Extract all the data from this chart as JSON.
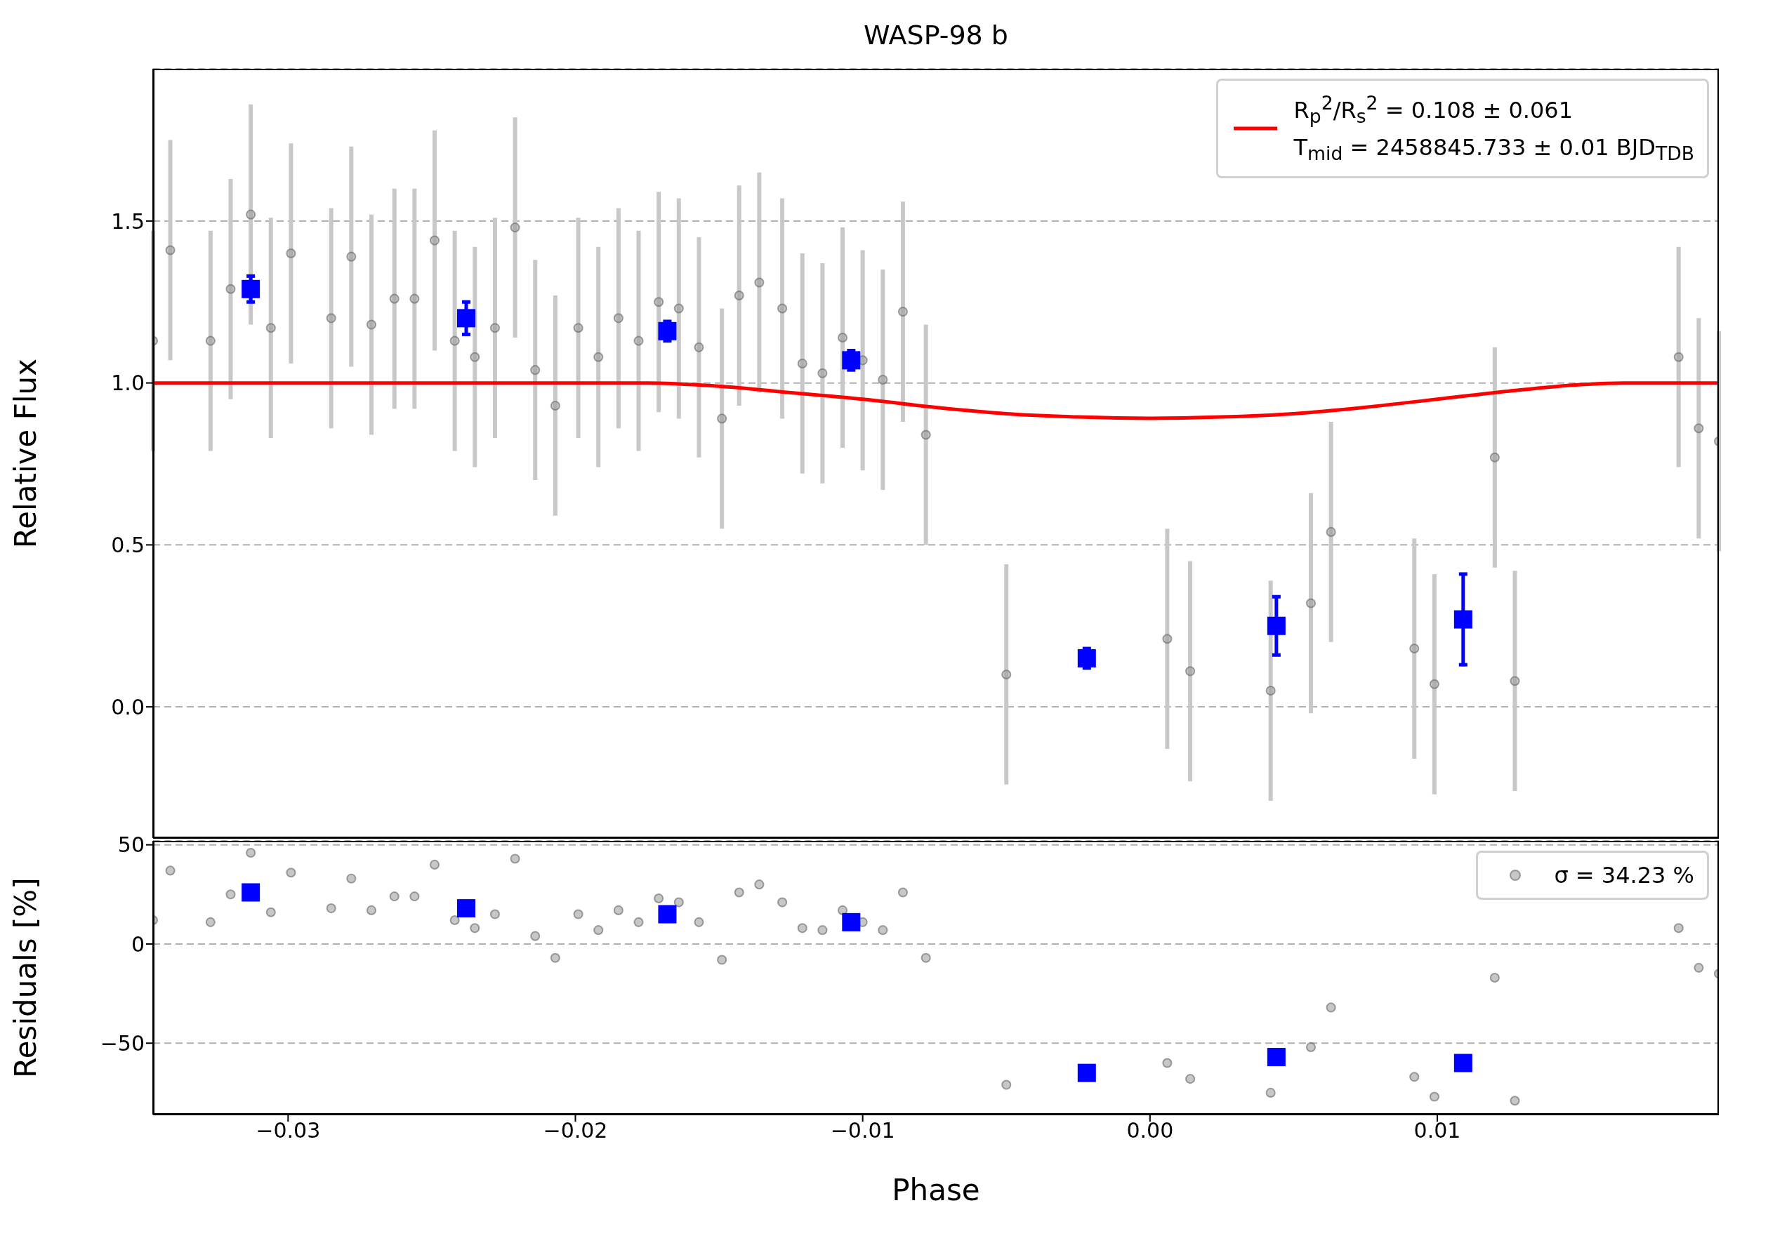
{
  "chart_data": [
    {
      "type": "scatter",
      "title": "WASP-98 b",
      "ylabel": "Relative Flux",
      "xlim": [
        -0.0347,
        0.0198
      ],
      "xticks": [
        {
          "value": -0.03,
          "label": null
        },
        {
          "value": -0.02,
          "label": null
        },
        {
          "value": -0.01,
          "label": null
        },
        {
          "value": 0,
          "label": null
        },
        {
          "value": 0.01,
          "label": null
        }
      ],
      "ylim": [
        -0.405,
        1.97
      ],
      "yticks": [
        {
          "value": 0,
          "label": "0.0"
        },
        0.5,
        {
          "value": 1,
          "label": "1.0"
        },
        1.5
      ],
      "tick_labels": "y",
      "grid": "y",
      "legend": "top right",
      "series": [
        {
          "color": "#999999",
          "marker": "circle",
          "x": [
            -0.0347,
            -0.0341,
            -0.0327,
            -0.032,
            -0.0313,
            -0.0306,
            -0.0299,
            -0.0285,
            -0.0278,
            -0.0271,
            -0.0263,
            -0.0256,
            -0.0249,
            -0.0242,
            -0.0235,
            -0.0228,
            -0.0221,
            -0.0214,
            -0.0207,
            -0.0199,
            -0.0192,
            -0.0185,
            -0.0178,
            -0.0171,
            -0.0164,
            -0.0157,
            -0.0149,
            -0.0143,
            -0.0136,
            -0.0128,
            -0.0121,
            -0.0114,
            -0.0107,
            -0.01,
            -0.0093,
            -0.0086,
            -0.0078,
            -0.005,
            0.0006,
            0.0014,
            0.0042,
            0.0056,
            0.0063,
            0.0092,
            0.0099,
            0.012,
            0.0127,
            0.0184,
            0.0191,
            0.0198
          ],
          "values": [
            1.13,
            1.41,
            1.13,
            1.29,
            1.52,
            1.17,
            1.4,
            1.2,
            1.39,
            1.18,
            1.26,
            1.26,
            1.44,
            1.13,
            1.08,
            1.17,
            1.48,
            1.04,
            0.93,
            1.17,
            1.08,
            1.2,
            1.13,
            1.25,
            1.23,
            1.11,
            0.89,
            1.27,
            1.31,
            1.23,
            1.06,
            1.03,
            1.14,
            1.07,
            1.01,
            1.22,
            0.84,
            0.1,
            0.21,
            0.11,
            0.05,
            0.32,
            0.54,
            0.18,
            0.07,
            0.77,
            0.08,
            1.08,
            0.86,
            0.82
          ],
          "errors": [
            0.34,
            0.34,
            0.34,
            0.34,
            0.34,
            0.34,
            0.34,
            0.34,
            0.34,
            0.34,
            0.34,
            0.34,
            0.34,
            0.34,
            0.34,
            0.34,
            0.34,
            0.34,
            0.34,
            0.34,
            0.34,
            0.34,
            0.34,
            0.34,
            0.34,
            0.34,
            0.34,
            0.34,
            0.34,
            0.34,
            0.34,
            0.34,
            0.34,
            0.34,
            0.34,
            0.34,
            0.34,
            0.34,
            0.34,
            0.34,
            0.34,
            0.34,
            0.34,
            0.34,
            0.34,
            0.34,
            0.34,
            0.34,
            0.34,
            0.34
          ]
        },
        {
          "color": "#0000ff",
          "marker": "square",
          "x": [
            -0.0313,
            -0.0238,
            -0.0168,
            -0.0104,
            -0.0022,
            0.0044,
            0.0109
          ],
          "values": [
            1.29,
            1.2,
            1.16,
            1.07,
            0.15,
            0.25,
            0.27
          ],
          "errors": [
            0.04,
            0.05,
            0.03,
            0.03,
            0.03,
            0.09,
            0.14
          ]
        },
        {
          "type": "line",
          "name": "R$_{p}$$^{2}$/R$_{s}$$^{2}$ = 0.108 ± 0.061\nT$_{mid}$ = 2458845.733 ± 0.01 BJD$_{TDB}$",
          "color": "#ff0000",
          "marker": "none",
          "line_style": "solid",
          "x": [
            -0.0347,
            -0.0175,
            -0.015,
            -0.0125,
            -0.01,
            -0.0075,
            -0.005,
            -0.0025,
            0,
            0.0025,
            0.005,
            0.0075,
            0.01,
            0.0125,
            0.015,
            0.0165,
            0.0198
          ],
          "values": [
            1,
            1,
            0.99,
            0.97,
            0.95,
            0.925,
            0.905,
            0.895,
            0.891,
            0.895,
            0.905,
            0.925,
            0.95,
            0.975,
            0.995,
            1,
            1
          ]
        }
      ]
    },
    {
      "type": "scatter",
      "xlabel": "Phase",
      "ylabel": "Residuals [%]",
      "xlim": [
        -0.0347,
        0.0198
      ],
      "xticks": [
        {
          "value": -0.03,
          "label": "−0.03"
        },
        {
          "value": -0.02,
          "label": "−0.02"
        },
        {
          "value": -0.01,
          "label": "−0.01"
        },
        {
          "value": 0,
          "label": "0.00"
        },
        {
          "value": 0.01,
          "label": "0.01"
        }
      ],
      "ylim": [
        -86,
        52
      ],
      "yticks": [
        {
          "value": -50,
          "label": "−50"
        },
        0,
        50
      ],
      "grid": "y",
      "legend": "top right",
      "series": [
        {
          "name": "σ = 34.23 %",
          "color": "#999999",
          "marker": "circle",
          "x": [
            -0.0347,
            -0.0341,
            -0.0327,
            -0.032,
            -0.0313,
            -0.0306,
            -0.0299,
            -0.0285,
            -0.0278,
            -0.0271,
            -0.0263,
            -0.0256,
            -0.0249,
            -0.0242,
            -0.0235,
            -0.0228,
            -0.0221,
            -0.0214,
            -0.0207,
            -0.0199,
            -0.0192,
            -0.0185,
            -0.0178,
            -0.0171,
            -0.0164,
            -0.0157,
            -0.0149,
            -0.0143,
            -0.0136,
            -0.0128,
            -0.0121,
            -0.0114,
            -0.0107,
            -0.01,
            -0.0093,
            -0.0086,
            -0.0078,
            -0.005,
            0.0006,
            0.0014,
            0.0042,
            0.0056,
            0.0063,
            0.0092,
            0.0099,
            0.012,
            0.0127,
            0.0184,
            0.0191,
            0.0198
          ],
          "values": [
            12,
            37,
            11,
            25,
            46,
            16,
            36,
            18,
            33,
            17,
            24,
            24,
            40,
            12,
            8,
            15,
            43,
            4,
            -7,
            15,
            7,
            17,
            11,
            23,
            21,
            11,
            -8,
            26,
            30,
            21,
            8,
            7,
            17,
            11,
            7,
            26,
            -7,
            -71,
            -60,
            -68,
            -75,
            -52,
            -32,
            -67,
            -77,
            -17,
            -79,
            8,
            -12,
            -15
          ]
        },
        {
          "color": "#0000ff",
          "marker": "square",
          "x": [
            -0.0313,
            -0.0238,
            -0.0168,
            -0.0104,
            -0.0022,
            0.0044,
            0.0109
          ],
          "values": [
            26,
            18,
            15,
            11,
            -65,
            -57,
            -60
          ]
        }
      ]
    }
  ]
}
